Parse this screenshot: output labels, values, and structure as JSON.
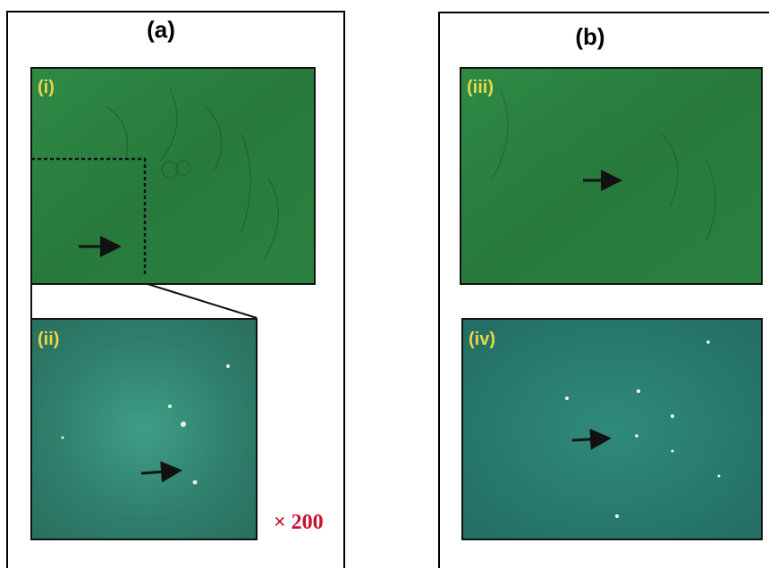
{
  "panels": [
    {
      "title": "(a)",
      "images": [
        {
          "label": "(i)"
        },
        {
          "label": "(ii)"
        }
      ],
      "magnification": "× 200"
    },
    {
      "title": "(b)",
      "images": [
        {
          "label": "(iii)"
        },
        {
          "label": "(iv)"
        }
      ]
    }
  ]
}
